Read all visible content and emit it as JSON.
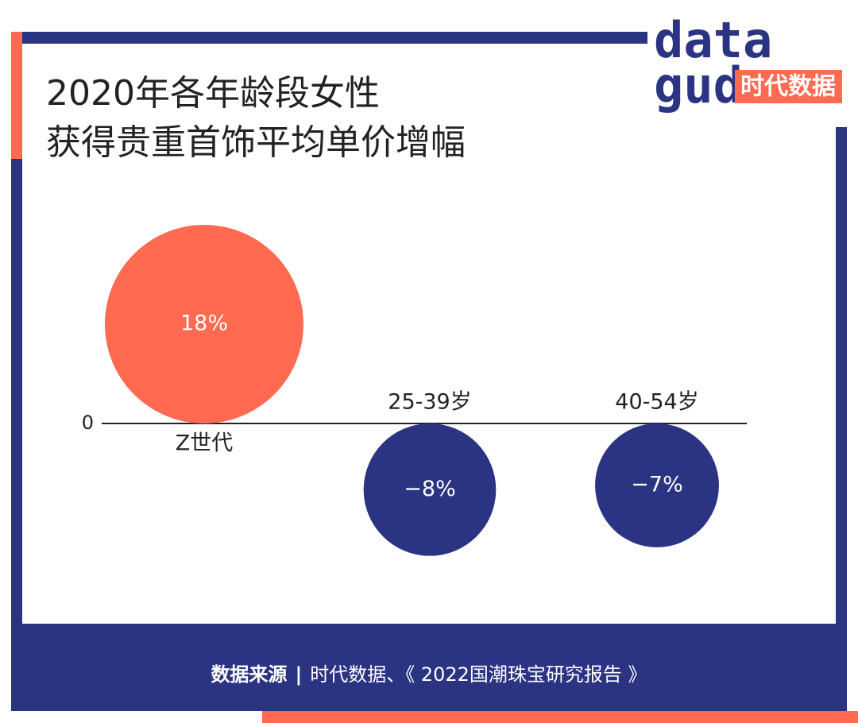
{
  "chart_data": {
    "type": "bubble",
    "title": [
      "2020年各年龄段女性",
      "获得贵重首饰平均单价增幅"
    ],
    "categories": [
      "Z世代",
      "25-39岁",
      "40-54岁"
    ],
    "values": [
      18,
      -8,
      -7
    ],
    "value_labels": [
      "18%",
      "−8%",
      "−7%"
    ],
    "colors": {
      "positive": "#ff6a50",
      "negative": "#2b3383"
    },
    "yticks": [
      0
    ]
  },
  "logo": {
    "word_top": "data",
    "word_bottom": "gud",
    "brand": "时代数据"
  },
  "footer": {
    "label": "数据来源",
    "separator": "|",
    "source": "时代数据、《 2022国潮珠宝研究报告 》"
  }
}
